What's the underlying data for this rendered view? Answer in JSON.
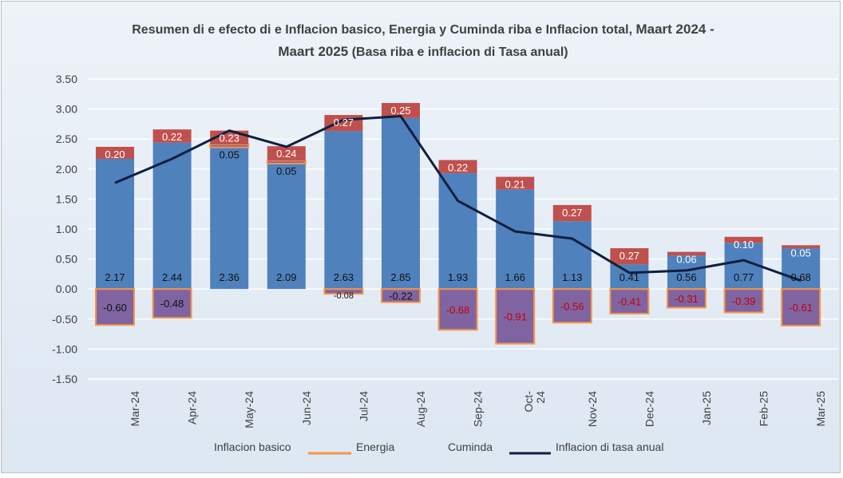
{
  "chart_data": {
    "type": "bar",
    "title_line1_a": "Resumen di e efecto di e Inflacion basico, Energia y Cuminda riba e Inflacion total, ",
    "title_line1_b": "Maart 2024 -",
    "title_line2_a": "Maart 2025",
    "title_line2_b": " (Basa riba e inflacion di Tasa anual)",
    "categories": [
      "Mar-24",
      "Apr-24",
      "May-24",
      "Jun-24",
      "Jul-24",
      "Aug-24",
      "Sep-24",
      "Oct-24",
      "Nov-24",
      "Dec-24",
      "Jan-25",
      "Feb-25",
      "Mar-25"
    ],
    "category_labels": [
      [
        "Mar-24"
      ],
      [
        "Apr-24"
      ],
      [
        "May-24"
      ],
      [
        "Jun-24"
      ],
      [
        "Jul-24"
      ],
      [
        "Aug-24"
      ],
      [
        "Sep-24"
      ],
      [
        "Oct-",
        "24"
      ],
      [
        "Nov-24"
      ],
      [
        "Dec-24"
      ],
      [
        "Jan-25"
      ],
      [
        "Feb-25"
      ],
      [
        "Mar-25"
      ]
    ],
    "yticks": [
      "3.50",
      "3.00",
      "2.50",
      "2.00",
      "1.50",
      "1.00",
      "0.50",
      "0.00",
      "-0.50",
      "-1.00",
      "-1.50"
    ],
    "ylim": [
      -1.5,
      3.5
    ],
    "series": [
      {
        "name": "Inflacion basico",
        "color": "#4f81bd",
        "values": [
          2.17,
          2.44,
          2.36,
          2.09,
          2.63,
          2.85,
          1.93,
          1.66,
          1.13,
          0.41,
          0.56,
          0.77,
          0.68
        ],
        "labels": [
          "2.17",
          "2.44",
          "2.36",
          "2.09",
          "2.63",
          "2.85",
          "1.93",
          "1.66",
          "1.13",
          "0.41",
          "0.56",
          "0.77",
          "0.68"
        ]
      },
      {
        "name": "Energia",
        "color": "#f79646",
        "fill": "#8064a2",
        "values": [
          -0.6,
          -0.48,
          0.05,
          0.05,
          -0.08,
          -0.22,
          -0.68,
          -0.91,
          -0.56,
          -0.41,
          -0.31,
          -0.39,
          -0.61
        ],
        "labels": [
          "-0.60",
          "-0.48",
          "0.05",
          "0.05",
          "-0.08",
          "-0.22",
          "-0.68",
          "-0.91",
          "-0.56",
          "-0.41",
          "-0.31",
          "-0.39",
          "-0.61"
        ]
      },
      {
        "name": "Cuminda",
        "color": "#c0504d",
        "values": [
          0.2,
          0.22,
          0.23,
          0.24,
          0.27,
          0.25,
          0.22,
          0.21,
          0.27,
          0.27,
          0.06,
          0.1,
          0.05
        ],
        "labels": [
          "0.20",
          "0.22",
          "0.23",
          "0.24",
          "0.27",
          "0.25",
          "0.22",
          "0.21",
          "0.27",
          "0.27",
          "0.06",
          "0.10",
          "0.05"
        ]
      },
      {
        "name": "Inflacion  di tasa anual",
        "color": "#0f1f40",
        "values": [
          1.77,
          2.17,
          2.64,
          2.37,
          2.82,
          2.88,
          1.47,
          0.96,
          0.84,
          0.27,
          0.31,
          0.48,
          0.14
        ]
      }
    ],
    "grid": true,
    "legend_position": "bottom",
    "colors": {
      "bar_outline_energy": "#f79646",
      "negative_label_red": "#c00000",
      "gridline": "#ffffff"
    }
  }
}
